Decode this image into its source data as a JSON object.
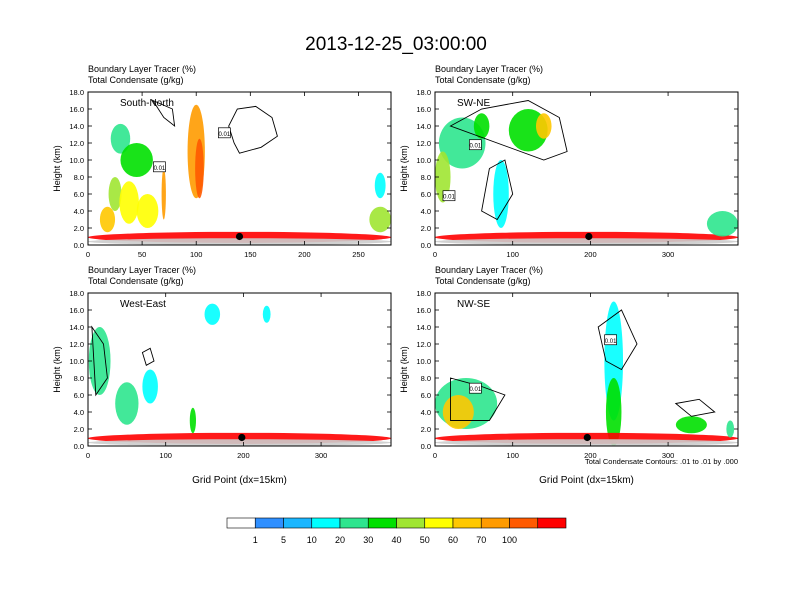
{
  "figure": {
    "title": "2013-12-25_03:00:00",
    "contour_note": "Total Condensate Contours: .01 to .01 by .000"
  },
  "colorbar": {
    "labels": [
      "1",
      "5",
      "10",
      "20",
      "30",
      "40",
      "50",
      "60",
      "70",
      "100"
    ],
    "colors": [
      "#ffffff",
      "#2f8fff",
      "#1ab6ff",
      "#00ffff",
      "#2ee58e",
      "#00e000",
      "#a0e632",
      "#ffff00",
      "#ffc800",
      "#ff9b00",
      "#ff5a00",
      "#ff0000"
    ]
  },
  "chart_data": [
    {
      "type": "heatmap",
      "panel": "south-north",
      "label": "South-North",
      "title_line1": "Boundary Layer Tracer    (%)",
      "title_line2": "Total Condensate   (g/kg)",
      "ylabel": "Height (km)",
      "xlabel": "",
      "xlim": [
        0,
        280
      ],
      "ylim": [
        0,
        18
      ],
      "xticks": [
        0,
        50,
        100,
        150,
        200,
        250
      ],
      "yticks": [
        0,
        2,
        4,
        6,
        8,
        10,
        12,
        14,
        16,
        18
      ],
      "marker": [
        140,
        1.0
      ],
      "contour_labels": [
        {
          "x": 126,
          "y": 13.2,
          "text": "0.01"
        },
        {
          "x": 66,
          "y": 9.2,
          "text": "0.01"
        }
      ],
      "blobs": [
        {
          "x": 30,
          "y": 12.5,
          "w": 18,
          "h": 3.5,
          "level": 4
        },
        {
          "x": 45,
          "y": 10,
          "w": 30,
          "h": 4,
          "level": 5
        },
        {
          "x": 25,
          "y": 6,
          "w": 12,
          "h": 4,
          "level": 6
        },
        {
          "x": 38,
          "y": 5,
          "w": 18,
          "h": 5,
          "level": 7
        },
        {
          "x": 55,
          "y": 4,
          "w": 20,
          "h": 4,
          "level": 7
        },
        {
          "x": 100,
          "y": 11,
          "w": 16,
          "h": 11,
          "level": 9
        },
        {
          "x": 103,
          "y": 9,
          "w": 8,
          "h": 7,
          "level": 10
        },
        {
          "x": 70,
          "y": 6,
          "w": 4,
          "h": 6,
          "level": 9
        },
        {
          "x": 18,
          "y": 3,
          "w": 14,
          "h": 3,
          "level": 8
        },
        {
          "x": 140,
          "y": 0.9,
          "w": 280,
          "h": 1.3,
          "level": 11
        },
        {
          "x": 140,
          "y": 0.4,
          "w": 280,
          "h": 0.8,
          "level": 12
        },
        {
          "x": 270,
          "y": 3,
          "w": 20,
          "h": 3,
          "level": 6
        },
        {
          "x": 270,
          "y": 7,
          "w": 10,
          "h": 3,
          "level": 3
        }
      ],
      "contours": [
        [
          [
            140,
            10.8
          ],
          [
            160,
            11.5
          ],
          [
            175,
            12.8
          ],
          [
            170,
            15
          ],
          [
            155,
            16.3
          ],
          [
            138,
            16
          ],
          [
            130,
            14
          ],
          [
            135,
            12
          ]
        ],
        [
          [
            60,
            17
          ],
          [
            70,
            15
          ],
          [
            80,
            14
          ],
          [
            78,
            16
          ]
        ]
      ]
    },
    {
      "type": "heatmap",
      "panel": "sw-ne",
      "label": "SW-NE",
      "title_line1": "Boundary Layer Tracer    (%)",
      "title_line2": "Total Condensate   (g/kg)",
      "ylabel": "Height (km)",
      "xlabel": "",
      "xlim": [
        0,
        390
      ],
      "ylim": [
        0,
        18
      ],
      "xticks": [
        0,
        100,
        200,
        300
      ],
      "yticks": [
        0,
        2,
        4,
        6,
        8,
        10,
        12,
        14,
        16,
        18
      ],
      "marker": [
        198,
        1.0
      ],
      "contour_labels": [
        {
          "x": 52,
          "y": 11.8,
          "text": "0.01"
        },
        {
          "x": 18,
          "y": 5.8,
          "text": "0.01"
        }
      ],
      "blobs": [
        {
          "x": 35,
          "y": 12,
          "w": 60,
          "h": 6,
          "level": 4
        },
        {
          "x": 60,
          "y": 14,
          "w": 20,
          "h": 3,
          "level": 5
        },
        {
          "x": 120,
          "y": 13.5,
          "w": 50,
          "h": 5,
          "level": 5
        },
        {
          "x": 140,
          "y": 14,
          "w": 20,
          "h": 3,
          "level": 8
        },
        {
          "x": 10,
          "y": 8,
          "w": 20,
          "h": 6,
          "level": 6
        },
        {
          "x": 85,
          "y": 6,
          "w": 20,
          "h": 8,
          "level": 3
        },
        {
          "x": 195,
          "y": 0.9,
          "w": 390,
          "h": 1.3,
          "level": 11
        },
        {
          "x": 195,
          "y": 0.4,
          "w": 390,
          "h": 0.8,
          "level": 12
        },
        {
          "x": 370,
          "y": 2.5,
          "w": 40,
          "h": 3,
          "level": 4
        }
      ],
      "contours": [
        [
          [
            20,
            14
          ],
          [
            60,
            16
          ],
          [
            120,
            17
          ],
          [
            160,
            15
          ],
          [
            170,
            11
          ],
          [
            140,
            10
          ]
        ],
        [
          [
            60,
            4
          ],
          [
            80,
            3
          ],
          [
            100,
            6
          ],
          [
            90,
            10
          ],
          [
            70,
            9
          ]
        ]
      ]
    },
    {
      "type": "heatmap",
      "panel": "west-east",
      "label": "West-East",
      "title_line1": "Boundary Layer Tracer    (%)",
      "title_line2": "Total Condensate   (g/kg)",
      "ylabel": "Height (km)",
      "xlabel": "Grid Point (dx=15km)",
      "xlim": [
        0,
        390
      ],
      "ylim": [
        0,
        18
      ],
      "xticks": [
        0,
        100,
        200,
        300
      ],
      "yticks": [
        0,
        2,
        4,
        6,
        8,
        10,
        12,
        14,
        16,
        18
      ],
      "marker": [
        198,
        1.0
      ],
      "contour_labels": [],
      "blobs": [
        {
          "x": 15,
          "y": 10,
          "w": 28,
          "h": 8,
          "level": 4
        },
        {
          "x": 50,
          "y": 5,
          "w": 30,
          "h": 5,
          "level": 4
        },
        {
          "x": 80,
          "y": 7,
          "w": 20,
          "h": 4,
          "level": 3
        },
        {
          "x": 195,
          "y": 0.9,
          "w": 390,
          "h": 1.3,
          "level": 11
        },
        {
          "x": 195,
          "y": 0.4,
          "w": 390,
          "h": 0.8,
          "level": 12
        },
        {
          "x": 160,
          "y": 15.5,
          "w": 20,
          "h": 2.5,
          "level": 3
        },
        {
          "x": 230,
          "y": 15.5,
          "w": 10,
          "h": 2,
          "level": 3
        },
        {
          "x": 135,
          "y": 3,
          "w": 8,
          "h": 3,
          "level": 5
        }
      ],
      "contours": [
        [
          [
            70,
            11
          ],
          [
            80,
            11.5
          ],
          [
            85,
            10
          ],
          [
            75,
            9.5
          ]
        ],
        [
          [
            5,
            14
          ],
          [
            20,
            12
          ],
          [
            25,
            8
          ],
          [
            10,
            6
          ]
        ]
      ]
    },
    {
      "type": "heatmap",
      "panel": "nw-se",
      "label": "NW-SE",
      "title_line1": "Boundary Layer Tracer    (%)",
      "title_line2": "Total Condensate   (g/kg)",
      "ylabel": "Height (km)",
      "xlabel": "Grid Point (dx=15km)",
      "xlim": [
        0,
        390
      ],
      "ylim": [
        0,
        18
      ],
      "xticks": [
        0,
        100,
        200,
        300
      ],
      "yticks": [
        0,
        2,
        4,
        6,
        8,
        10,
        12,
        14,
        16,
        18
      ],
      "marker": [
        196,
        1.0
      ],
      "contour_labels": [
        {
          "x": 226,
          "y": 12.5,
          "text": "0.01"
        },
        {
          "x": 52,
          "y": 6.8,
          "text": "0.01"
        }
      ],
      "blobs": [
        {
          "x": 40,
          "y": 5,
          "w": 80,
          "h": 6,
          "level": 4
        },
        {
          "x": 30,
          "y": 4,
          "w": 40,
          "h": 4,
          "level": 8
        },
        {
          "x": 230,
          "y": 10,
          "w": 24,
          "h": 14,
          "level": 3
        },
        {
          "x": 230,
          "y": 4,
          "w": 20,
          "h": 8,
          "level": 5
        },
        {
          "x": 195,
          "y": 0.9,
          "w": 390,
          "h": 1.3,
          "level": 11
        },
        {
          "x": 195,
          "y": 0.4,
          "w": 390,
          "h": 0.8,
          "level": 12
        },
        {
          "x": 330,
          "y": 2.5,
          "w": 40,
          "h": 2,
          "level": 5
        },
        {
          "x": 380,
          "y": 2,
          "w": 10,
          "h": 2,
          "level": 4
        }
      ],
      "contours": [
        [
          [
            210,
            14
          ],
          [
            240,
            16
          ],
          [
            260,
            12
          ],
          [
            240,
            9
          ],
          [
            220,
            10
          ]
        ],
        [
          [
            20,
            8
          ],
          [
            60,
            7
          ],
          [
            90,
            6
          ],
          [
            70,
            3
          ],
          [
            20,
            3
          ]
        ],
        [
          [
            310,
            5
          ],
          [
            340,
            5.5
          ],
          [
            360,
            4
          ],
          [
            330,
            3.5
          ]
        ]
      ]
    }
  ]
}
